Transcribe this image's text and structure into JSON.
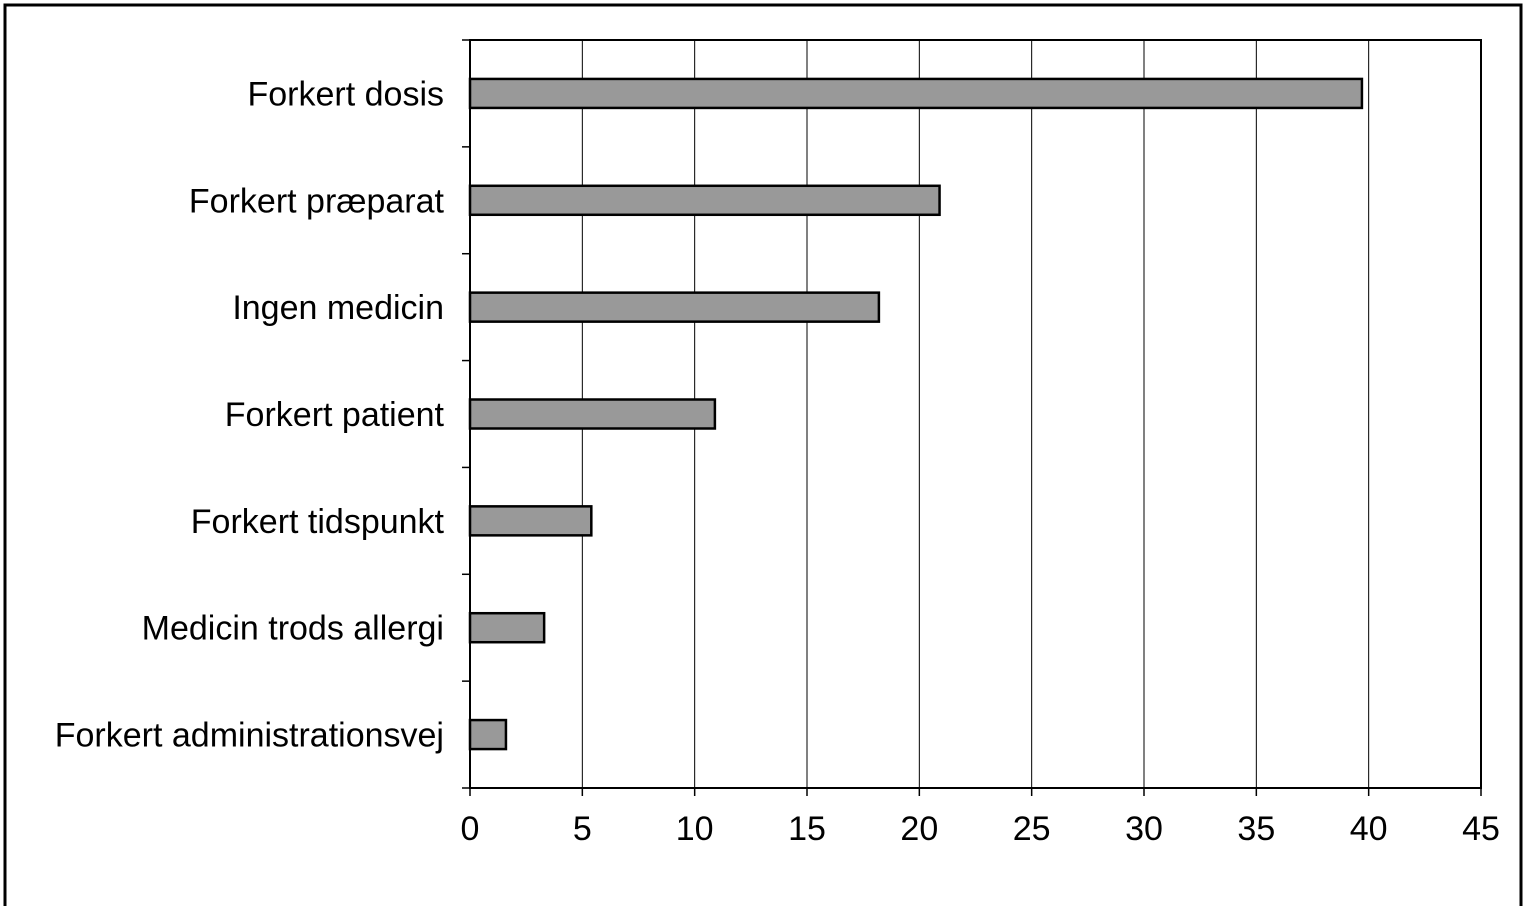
{
  "chart_data": {
    "type": "bar",
    "orientation": "horizontal",
    "title": "",
    "xlabel": "",
    "ylabel": "",
    "categories": [
      "Forkert dosis",
      "Forkert præparat",
      "Ingen medicin",
      "Forkert patient",
      "Forkert tidspunkt",
      "Medicin trods allergi",
      "Forkert administrationsvej"
    ],
    "values": [
      39.7,
      20.9,
      18.2,
      10.9,
      5.4,
      3.3,
      1.6
    ],
    "xlim": [
      0,
      45
    ],
    "xticks": [
      "0",
      "5",
      "10",
      "15",
      "20",
      "25",
      "30",
      "35",
      "40",
      "45"
    ],
    "grid": "vertical",
    "legend": "none",
    "colors": {
      "bar_fill": "#999999",
      "bar_stroke": "#000000",
      "grid": "#000000",
      "background": "#ffffff"
    }
  }
}
